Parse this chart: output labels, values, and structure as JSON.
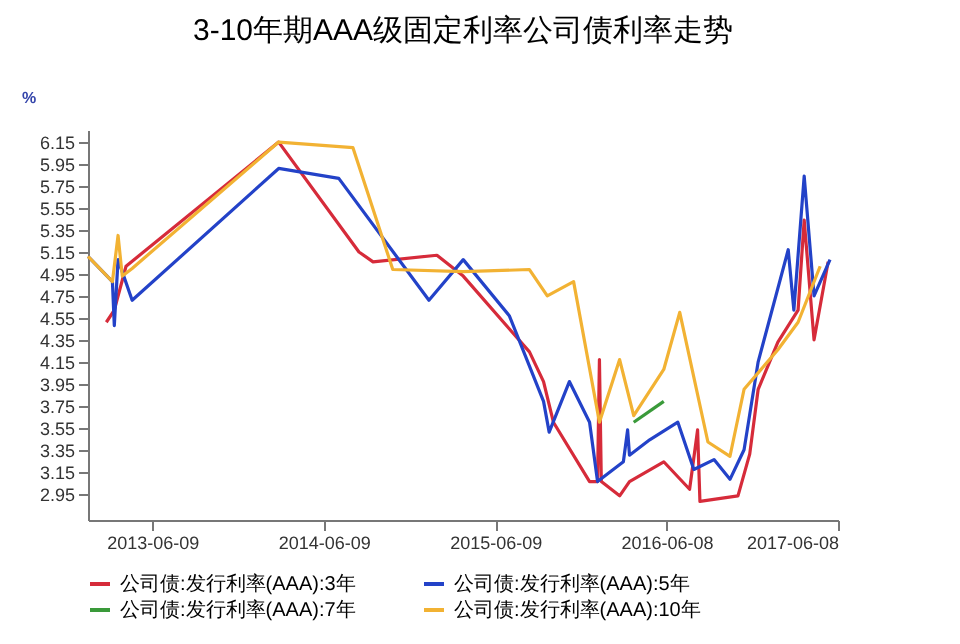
{
  "chart_data": {
    "type": "line",
    "title": "3-10年期AAA级固定利率公司债利率走势",
    "ylabel": "%",
    "legend": "bottom",
    "xlim": [
      "2013-01-23",
      "2017-06-08"
    ],
    "xticks": [
      "2013-06-09",
      "2014-06-09",
      "2015-06-09",
      "2016-06-08",
      "2017-06-08"
    ],
    "ylim": [
      2.71,
      6.26
    ],
    "yticks": [
      2.95,
      3.15,
      3.35,
      3.55,
      3.75,
      3.95,
      4.15,
      4.35,
      4.55,
      4.75,
      4.95,
      5.15,
      5.35,
      5.55,
      5.75,
      5.95,
      6.15
    ],
    "series": [
      {
        "name": "公司债:发行利率(AAA):3年",
        "color": "#d62b3a",
        "x": [
          "2013-03-03",
          "2013-03-20",
          "2013-04-14",
          "2014-03-05",
          "2014-08-23",
          "2014-09-22",
          "2015-02-05",
          "2015-04-02",
          "2015-08-21",
          "2015-09-20",
          "2015-10-11",
          "2015-12-27",
          "2016-01-13",
          "2016-01-17",
          "2016-01-21",
          "2016-02-29",
          "2016-03-21",
          "2016-06-02",
          "2016-07-27",
          "2016-08-13",
          "2016-08-18",
          "2016-11-07",
          "2016-12-02",
          "2016-12-20",
          "2017-01-31",
          "2017-03-15",
          "2017-03-28",
          "2017-04-18",
          "2017-05-18"
        ],
        "values": [
          4.51,
          4.62,
          5.02,
          6.15,
          5.15,
          5.06,
          5.12,
          4.93,
          4.24,
          3.97,
          3.6,
          3.06,
          3.06,
          4.17,
          3.06,
          2.93,
          3.06,
          3.24,
          2.99,
          3.53,
          2.88,
          2.93,
          3.31,
          3.9,
          4.33,
          4.62,
          5.44,
          4.35,
          5.06
        ]
      },
      {
        "name": "公司债:发行利率(AAA):5年",
        "color": "#2342c8",
        "x": [
          "2013-01-23",
          "2013-03-16",
          "2013-03-20",
          "2013-03-28",
          "2013-04-27",
          "2014-03-05",
          "2014-07-11",
          "2015-01-19",
          "2015-04-02",
          "2015-07-09",
          "2015-09-20",
          "2015-10-02",
          "2015-11-14",
          "2015-12-27",
          "2016-01-13",
          "2016-03-08",
          "2016-03-17",
          "2016-03-21",
          "2016-05-03",
          "2016-07-02",
          "2016-08-05",
          "2016-09-17",
          "2016-10-21",
          "2016-11-20",
          "2016-12-20",
          "2017-02-22",
          "2017-03-06",
          "2017-03-28",
          "2017-04-18",
          "2017-05-22"
        ],
        "values": [
          5.11,
          4.88,
          4.48,
          5.08,
          4.71,
          5.91,
          5.82,
          4.71,
          5.08,
          4.57,
          3.79,
          3.51,
          3.97,
          3.6,
          3.06,
          3.24,
          3.53,
          3.3,
          3.44,
          3.6,
          3.17,
          3.26,
          3.08,
          3.35,
          4.15,
          5.17,
          4.62,
          5.84,
          4.75,
          5.08
        ]
      },
      {
        "name": "公司债:发行利率(AAA):7年",
        "color": "#3a9a3a",
        "x": [
          "2016-03-30",
          "2016-06-02"
        ],
        "values": [
          3.6,
          3.79
        ]
      },
      {
        "name": "公司债:发行利率(AAA):10年",
        "color": "#f2b233",
        "x": [
          "2013-01-23",
          "2013-03-16",
          "2013-03-28",
          "2013-04-06",
          "2013-04-27",
          "2014-03-05",
          "2014-08-10",
          "2014-11-03",
          "2015-04-02",
          "2015-08-21",
          "2015-09-28",
          "2015-11-23",
          "2016-01-17",
          "2016-02-29",
          "2016-03-30",
          "2016-06-02",
          "2016-07-06",
          "2016-09-04",
          "2016-10-21",
          "2016-11-20",
          "2017-01-31",
          "2017-03-15",
          "2017-05-01"
        ],
        "values": [
          5.11,
          4.88,
          5.3,
          4.93,
          5.0,
          6.15,
          6.1,
          4.99,
          4.97,
          4.99,
          4.75,
          4.88,
          3.6,
          4.17,
          3.66,
          4.08,
          4.6,
          3.42,
          3.29,
          3.9,
          4.26,
          4.51,
          5.02
        ]
      }
    ]
  }
}
